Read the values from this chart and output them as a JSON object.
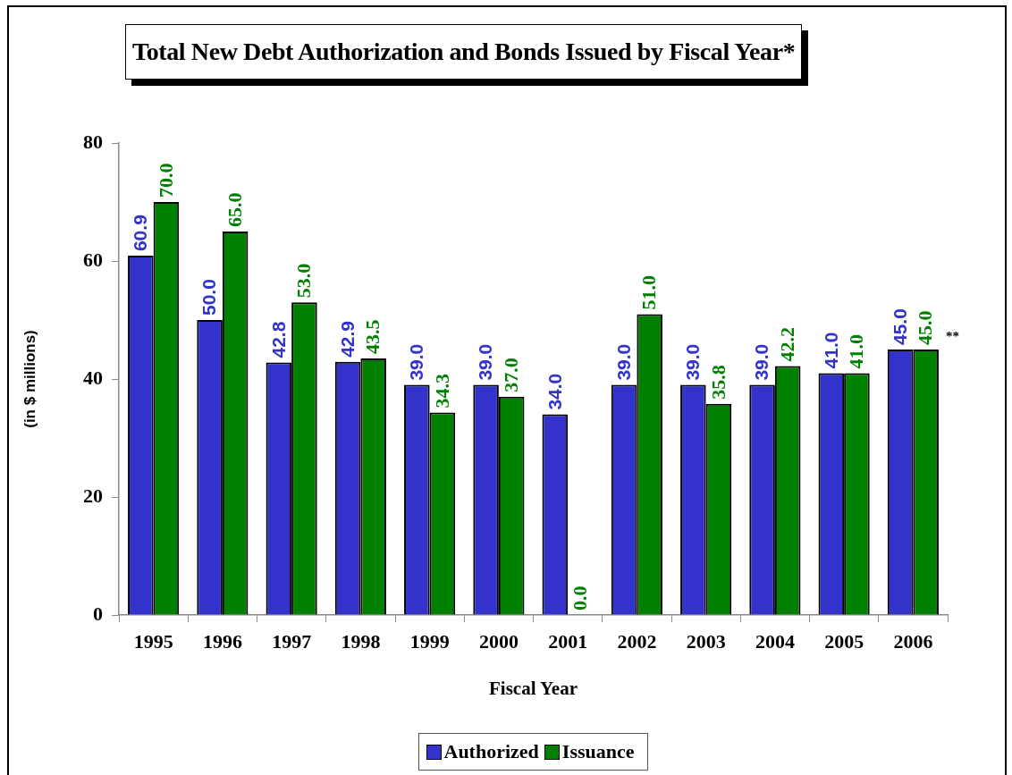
{
  "chart_data": {
    "type": "bar",
    "title": "Total New Debt Authorization and Bonds Issued by Fiscal Year*",
    "xlabel": "Fiscal Year",
    "ylabel": "(in $ millions)",
    "categories": [
      "1995",
      "1996",
      "1997",
      "1998",
      "1999",
      "2000",
      "2001",
      "2002",
      "2003",
      "2004",
      "2005",
      "2006"
    ],
    "series": [
      {
        "name": "Authorized",
        "color": "#3333cc",
        "values": [
          60.9,
          50.0,
          42.8,
          42.9,
          39.0,
          39.0,
          34.0,
          39.0,
          39.0,
          39.0,
          41.0,
          45.0
        ],
        "value_labels": [
          "60.9",
          "50.0",
          "42.8",
          "42.9",
          "39.0",
          "39.0",
          "34.0",
          "39.0",
          "39.0",
          "39.0",
          "41.0",
          "45.0"
        ]
      },
      {
        "name": "Issuance",
        "color": "#008000",
        "values": [
          70.0,
          65.0,
          53.0,
          43.5,
          34.3,
          37.0,
          0.0,
          51.0,
          35.8,
          42.2,
          41.0,
          45.0
        ],
        "value_labels": [
          "70.0",
          "65.0",
          "53.0",
          "43.5",
          "34.3",
          "37.0",
          "0.0",
          "51.0",
          "35.8",
          "42.2",
          "41.0",
          "45.0"
        ]
      }
    ],
    "ylim": [
      0,
      80
    ],
    "yticks": [
      0,
      20,
      40,
      60,
      80
    ],
    "grid": false,
    "legend": "bottom",
    "annotations": [
      {
        "text": "**",
        "x": "2006",
        "y": 45
      }
    ]
  }
}
